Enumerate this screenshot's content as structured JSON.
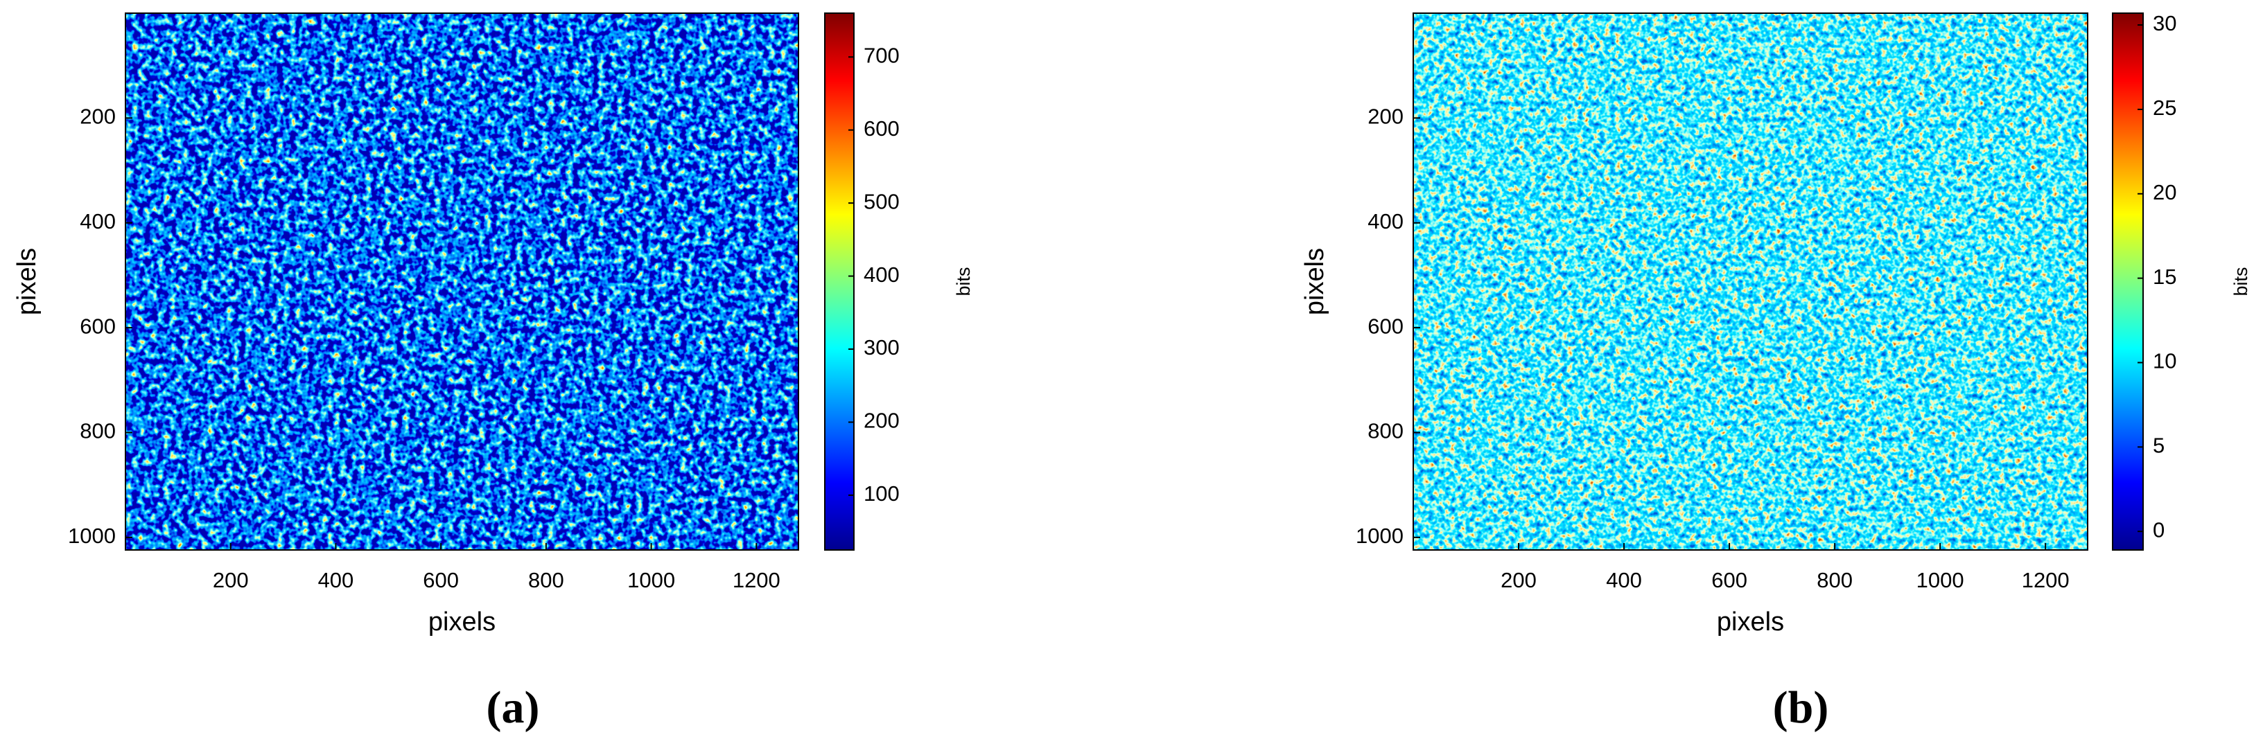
{
  "chart_data": [
    {
      "type": "heatmap",
      "caption": "(a)",
      "xlabel": "pixels",
      "ylabel": "pixels",
      "xlim": [
        0,
        1280
      ],
      "ylim": [
        0,
        1024
      ],
      "y_reversed": true,
      "xticks": [
        200,
        400,
        600,
        800,
        1000,
        1200
      ],
      "yticks": [
        200,
        400,
        600,
        800,
        1000
      ],
      "colormap": "jet",
      "colorbar_label": "bits",
      "clim": [
        25,
        760
      ],
      "cticks": [
        100,
        200,
        300,
        400,
        500,
        600,
        700
      ]
    },
    {
      "type": "heatmap",
      "caption": "(b)",
      "xlabel": "pixels",
      "ylabel": "pixels",
      "xlim": [
        0,
        1280
      ],
      "ylim": [
        0,
        1024
      ],
      "y_reversed": true,
      "xticks": [
        200,
        400,
        600,
        800,
        1000,
        1200
      ],
      "yticks": [
        200,
        400,
        600,
        800,
        1000
      ],
      "colormap": "jet",
      "colorbar_label": "bits",
      "clim": [
        -1.1,
        30.7
      ],
      "cticks": [
        0,
        5,
        10,
        15,
        20,
        25,
        30
      ]
    }
  ]
}
